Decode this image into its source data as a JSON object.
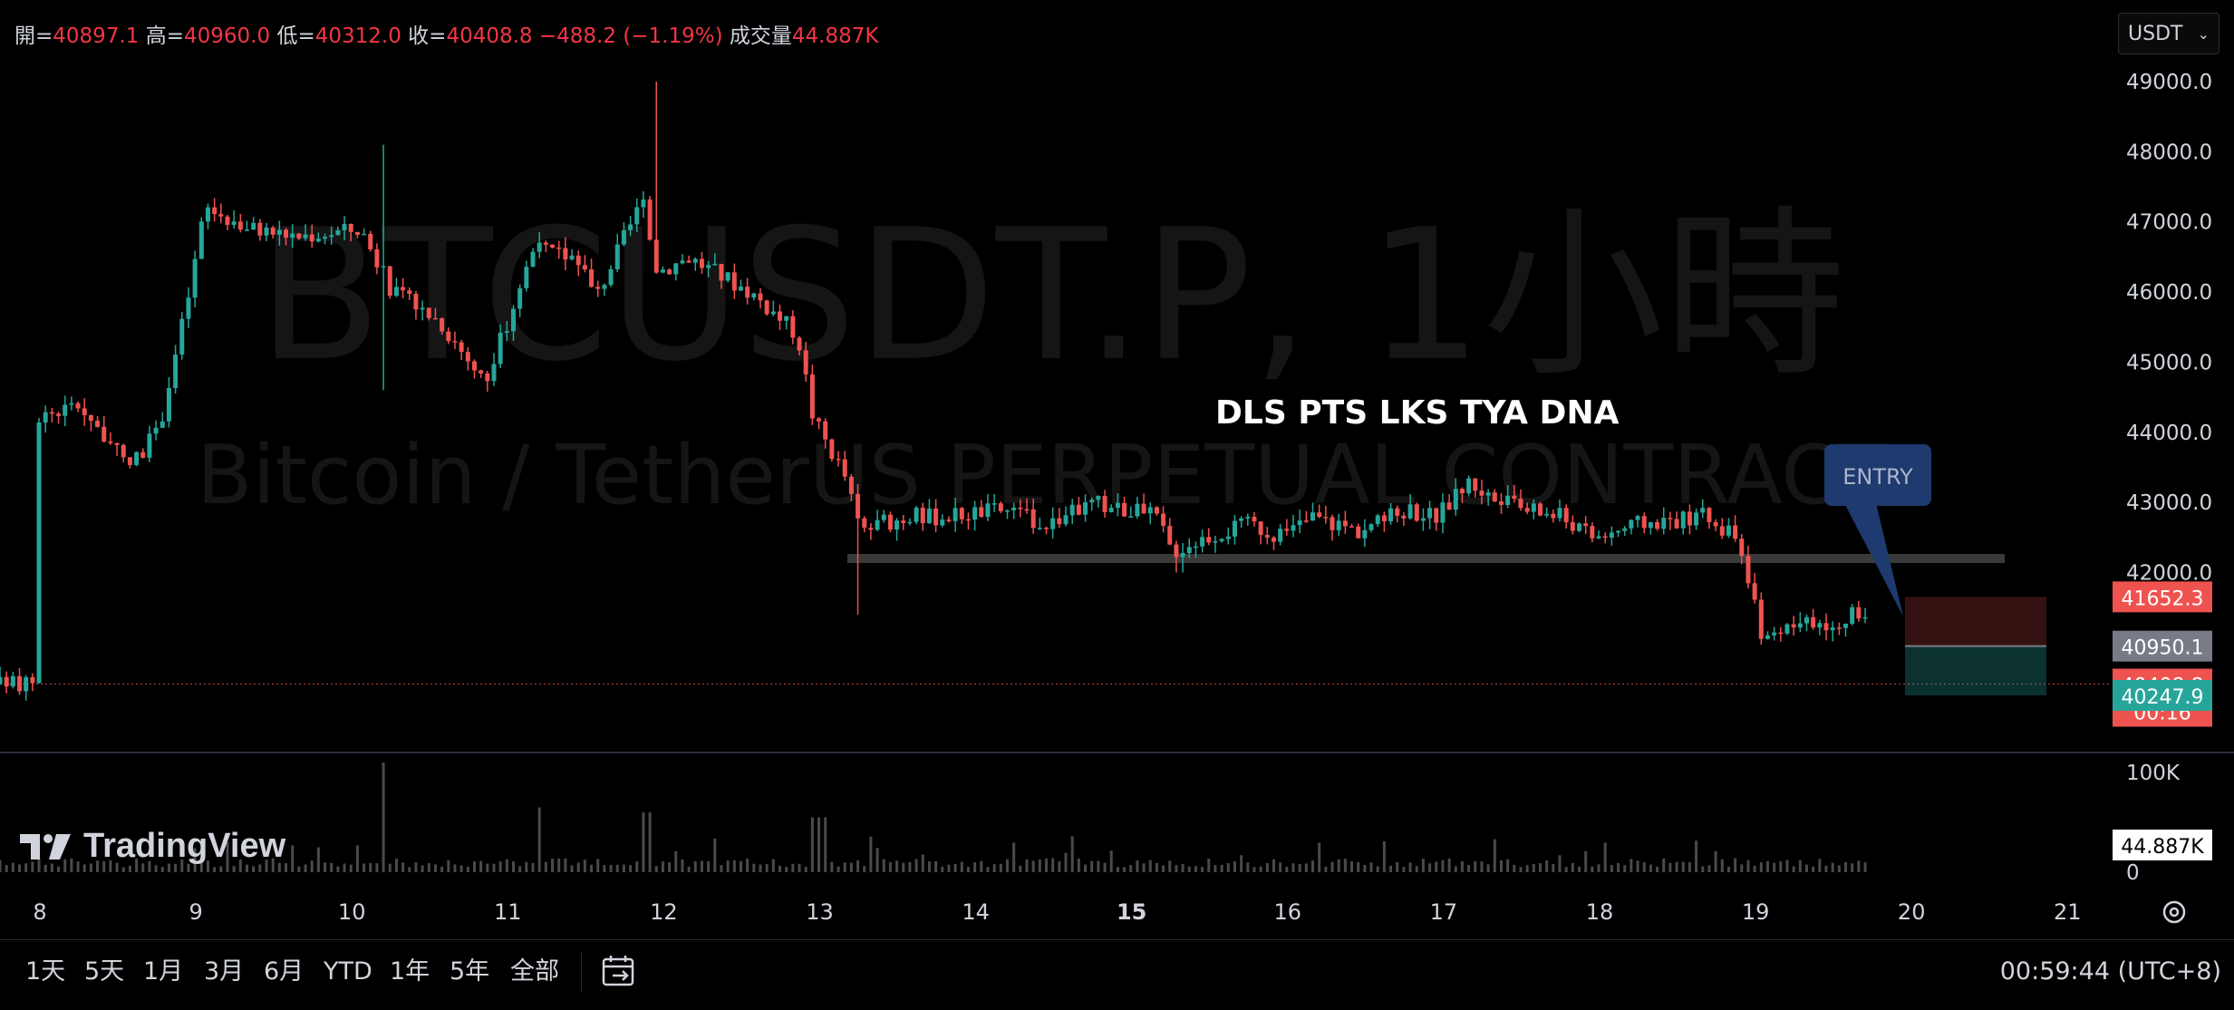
{
  "ohlc_bar": {
    "open_label": "開=",
    "open": "40897.1",
    "high_label": "高=",
    "high": "40960.0",
    "low_label": "低=",
    "low": "40312.0",
    "close_label": "收=",
    "close": "40408.8",
    "change": "−488.2 (−1.19%)",
    "volume_label": "成交量",
    "volume": "44.887K"
  },
  "currency": {
    "selected": "USDT"
  },
  "watermark": {
    "symbol": "BTCUSDT.P, 1小時",
    "description": "Bitcoin / TetherUS PERPETUAL CONTRACT"
  },
  "logo": {
    "text": "TradingView"
  },
  "colors": {
    "up": "#26a69a",
    "down": "#ef5350",
    "background": "#000000",
    "axis_text": "#d1d4dc",
    "entry_callout": "#1e3a6e"
  },
  "bottom_bar": {
    "ranges": [
      "1天",
      "5天",
      "1月",
      "3月",
      "6月",
      "YTD",
      "1年",
      "5年",
      "全部"
    ],
    "clock": "00:59:44 (UTC+8)"
  },
  "chart_data": {
    "type": "candlestick",
    "symbol": "BTCUSDT.P",
    "interval": "1小時",
    "price_axis": {
      "ticks": [
        "49000.0",
        "48000.0",
        "47000.0",
        "46000.0",
        "45000.0",
        "44000.0",
        "43000.0",
        "42000.0"
      ],
      "ylim": [
        40000,
        49000
      ]
    },
    "time_axis": {
      "ticks": [
        "8",
        "9",
        "10",
        "11",
        "12",
        "13",
        "14",
        "15",
        "16",
        "17",
        "18",
        "19",
        "20",
        "21"
      ],
      "bold": [
        "15"
      ]
    },
    "volume_axis": {
      "ticks": [
        "100K",
        "0"
      ],
      "current": "44.887K",
      "max": 120000
    },
    "price_labels": [
      {
        "value": "41652.3",
        "kind": "stop",
        "color": "#ef5350"
      },
      {
        "value": "40950.1",
        "kind": "entry",
        "color": "#787b86"
      },
      {
        "value": "40408.8",
        "countdown": "00:16",
        "kind": "last",
        "color": "#ef5350"
      },
      {
        "value": "40247.9",
        "kind": "target",
        "color": "#26a69a"
      }
    ],
    "annotations": {
      "headline": "DLS PTS LKS TYA DNA",
      "entry_label": "ENTRY"
    },
    "support_level": 42200,
    "position": {
      "entry": 40950.1,
      "stop": 41652.3,
      "target": 40247.9
    },
    "anchors": [
      [
        "8",
        44200
      ],
      [
        "8.3",
        44400
      ],
      [
        "8.6",
        43500
      ],
      [
        "8.8",
        44000
      ],
      [
        "8.9",
        45000
      ],
      [
        "9.0",
        46000
      ],
      [
        "9.1",
        47200
      ],
      [
        "9.4",
        46900
      ],
      [
        "9.7",
        46800
      ],
      [
        "10.1",
        46900
      ],
      [
        "10.3",
        46000
      ],
      [
        "10.6",
        45600
      ],
      [
        "10.9",
        44700
      ],
      [
        "11.2",
        46600
      ],
      [
        "11.5",
        46500
      ],
      [
        "11.6",
        45900
      ],
      [
        "11.9",
        47300
      ],
      [
        "12.0",
        46300
      ],
      [
        "12.2",
        46500
      ],
      [
        "12.6",
        46000
      ],
      [
        "12.9",
        45400
      ],
      [
        "13.0",
        44200
      ],
      [
        "13.2",
        43400
      ],
      [
        "13.3",
        42600
      ],
      [
        "13.6",
        42800
      ],
      [
        "13.8",
        42800
      ],
      [
        "14.2",
        42900
      ],
      [
        "14.5",
        42700
      ],
      [
        "14.8",
        43000
      ],
      [
        "15.2",
        42800
      ],
      [
        "15.3",
        42300
      ],
      [
        "15.5",
        42500
      ],
      [
        "15.8",
        42700
      ],
      [
        "16.0",
        42500
      ],
      [
        "16.2",
        42800
      ],
      [
        "16.5",
        42600
      ],
      [
        "16.8",
        42900
      ],
      [
        "17.0",
        42800
      ],
      [
        "17.2",
        43300
      ],
      [
        "17.4",
        43000
      ],
      [
        "17.8",
        42800
      ],
      [
        "18.0",
        42500
      ],
      [
        "18.3",
        42700
      ],
      [
        "18.7",
        42800
      ],
      [
        "18.9",
        42500
      ],
      [
        "19.0",
        41800
      ],
      [
        "19.1",
        41000
      ],
      [
        "19.3",
        41200
      ],
      [
        "19.5",
        41300
      ],
      [
        "19.7",
        41400
      ],
      [
        "19.9",
        41300
      ],
      [
        "20.0",
        40409
      ]
    ]
  }
}
